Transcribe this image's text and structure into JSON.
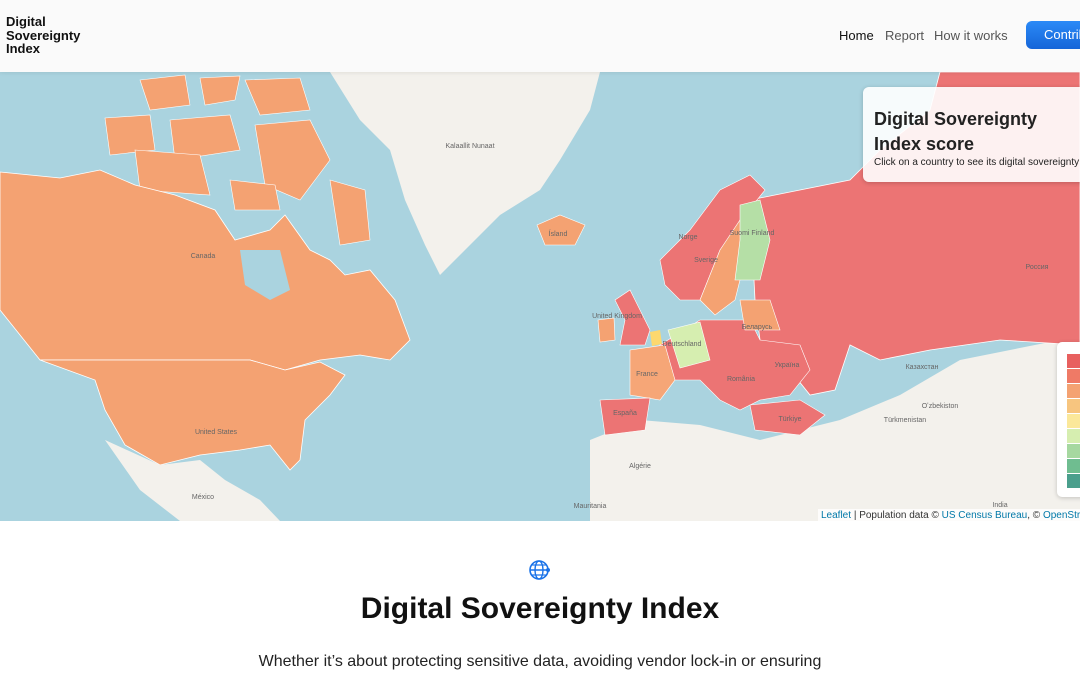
{
  "header": {
    "logo": "Digital Sovereignty Index",
    "nav": [
      "Home",
      "Report",
      "How it works"
    ],
    "button": "Contribute"
  },
  "map": {
    "labels": [
      "Kalaallit Nunaat",
      "Canada",
      "United States",
      "México",
      "Ísland",
      "Norge",
      "Sverige",
      "Suomi Finland",
      "United Kingdom",
      "Deutschland",
      "France",
      "España",
      "România",
      "Україна",
      "Беларусь",
      "Türkiye",
      "Россия",
      "Казахстан",
      "Oʻzbekiston",
      "Türkmenistan",
      "Algérie",
      "Mauritania",
      "India"
    ],
    "panel": {
      "title": "Digital Sovereignty Index score",
      "subtitle": "Click on a country to see its digital sovereignty score"
    },
    "attribution": {
      "leaflet": "Leaflet",
      "text": "| Population data ©",
      "census": "US Census Bureau",
      "sep": ", ©",
      "osm": "OpenStreetMap"
    }
  },
  "content": {
    "heading": "Digital Sovereignty Index",
    "paragraph": "Whether it’s about protecting sensitive data, avoiding vendor lock-in or ensuring"
  }
}
